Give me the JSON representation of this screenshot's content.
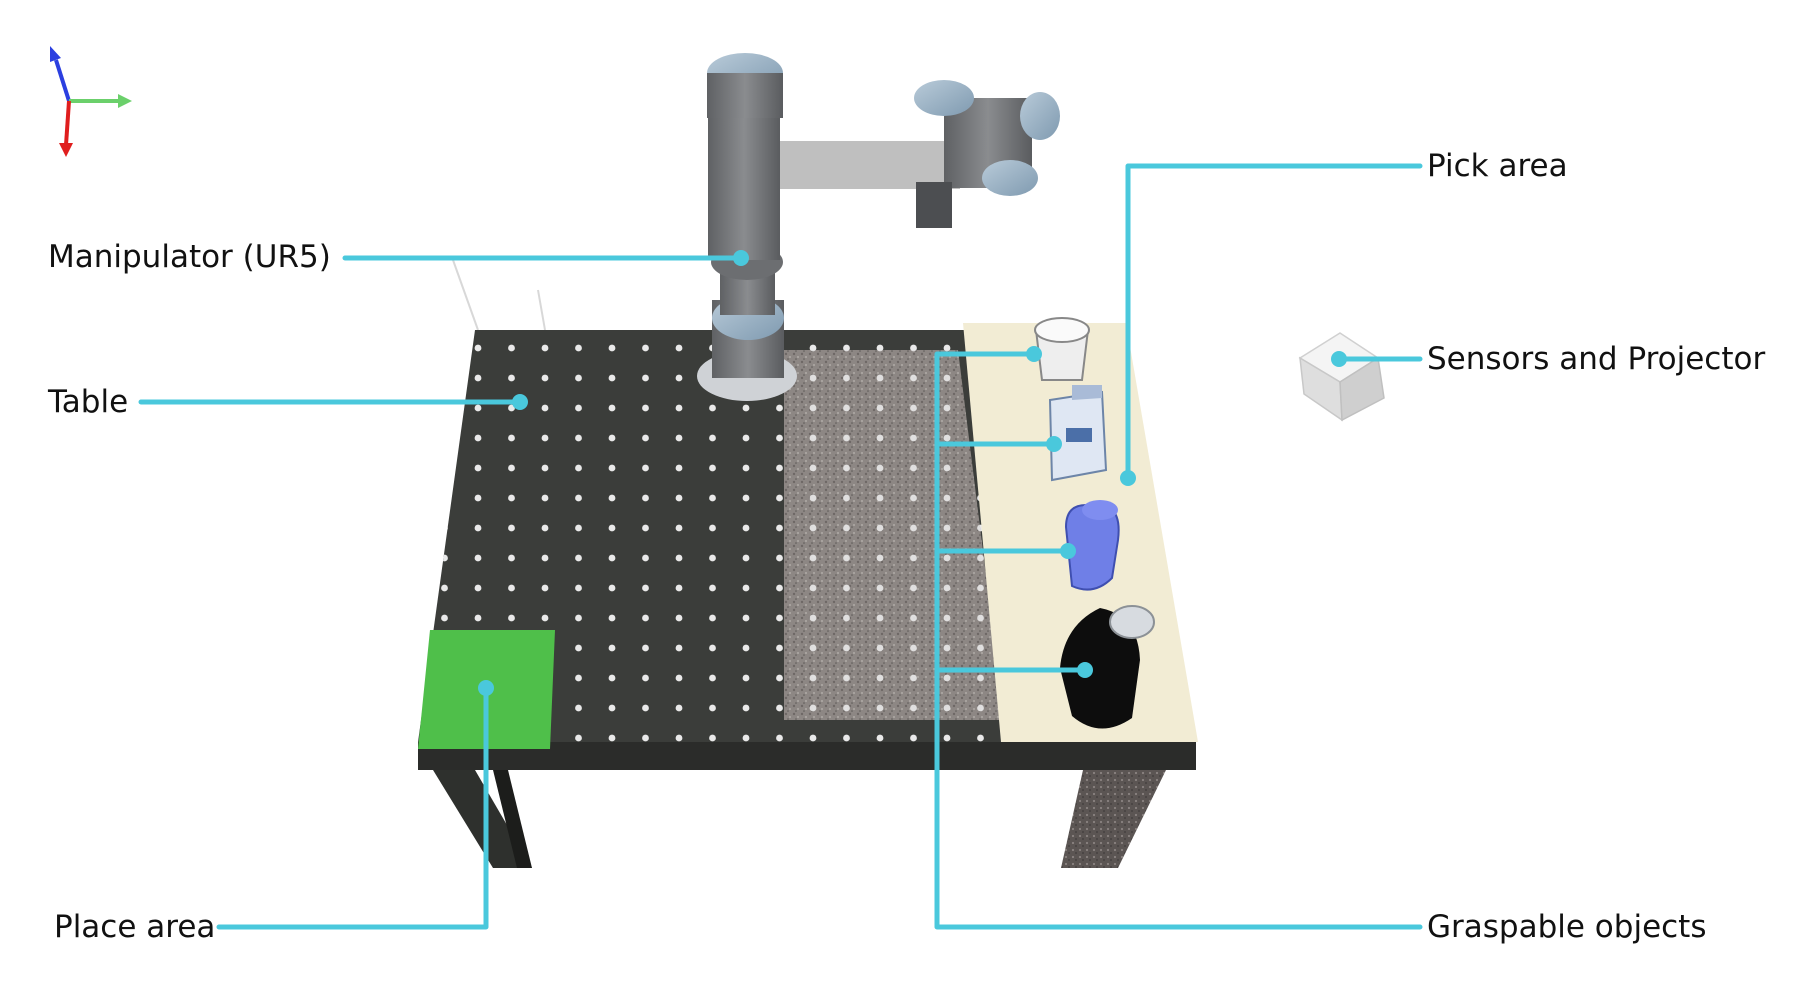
{
  "labels": {
    "manipulator": "Manipulator (UR5)",
    "table": "Table",
    "place_area": "Place area",
    "pick_area": "Pick area",
    "sensors": "Sensors and Projector",
    "graspable": "Graspable objects"
  },
  "axes_icon": [
    "z-axis",
    "y-axis",
    "x-axis"
  ],
  "colors": {
    "callout_line": "#4ac8dc",
    "place_area": "#4fbf4a",
    "pick_area": "#f2ecd4",
    "table_top": "#3c3e3b",
    "table_gravel": "#8a8482",
    "robot_body": "#7b7d80",
    "robot_joint_cap": "#9db4c8",
    "axis_x": "#e01e1e",
    "axis_y": "#6bd06b",
    "axis_z": "#2b3fe0"
  }
}
